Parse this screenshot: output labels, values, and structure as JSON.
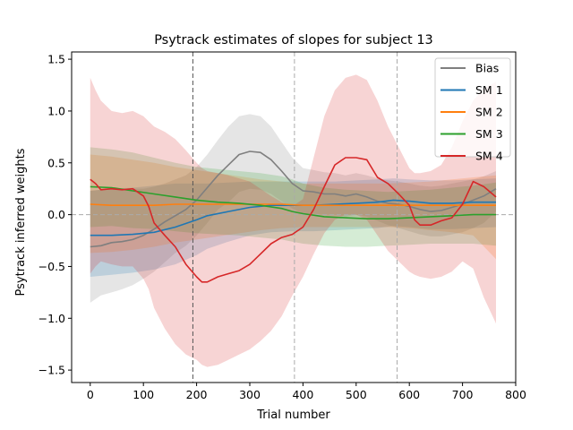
{
  "chart_data": {
    "type": "line",
    "title": "Psytrack estimates of slopes for subject 13",
    "xlabel": "Trial number",
    "ylabel": "Psytrack inferred weights",
    "xlim": [
      -35,
      800
    ],
    "ylim": [
      -1.62,
      1.57
    ],
    "xticks": [
      0,
      100,
      200,
      300,
      400,
      500,
      600,
      700,
      800
    ],
    "yticks": [
      -1.5,
      -1.0,
      -0.5,
      0.0,
      0.5,
      1.0,
      1.5
    ],
    "ytick_labels": [
      "−1.5",
      "−1.0",
      "−0.5",
      "0.0",
      "0.5",
      "1.0",
      "1.5"
    ],
    "zero_line": 0,
    "session_boundaries": [
      193,
      384,
      577
    ],
    "legend_position": "top-right",
    "grid": false,
    "series": [
      {
        "name": "Bias",
        "color": "#7f7f7f",
        "x": [
          0,
          20,
          40,
          60,
          80,
          100,
          120,
          140,
          160,
          180,
          200,
          220,
          240,
          260,
          280,
          300,
          320,
          340,
          360,
          380,
          400,
          420,
          440,
          460,
          480,
          500,
          520,
          540,
          560,
          580,
          600,
          620,
          640,
          660,
          680,
          700,
          720,
          740,
          763
        ],
        "y": [
          -0.31,
          -0.3,
          -0.27,
          -0.26,
          -0.24,
          -0.2,
          -0.14,
          -0.07,
          -0.01,
          0.05,
          0.14,
          0.26,
          0.38,
          0.48,
          0.58,
          0.61,
          0.6,
          0.53,
          0.42,
          0.3,
          0.23,
          0.22,
          0.2,
          0.2,
          0.18,
          0.2,
          0.17,
          0.13,
          0.11,
          0.1,
          0.08,
          0.05,
          0.03,
          0.04,
          0.07,
          0.1,
          0.14,
          0.18,
          0.25
        ],
        "upper": [
          0.23,
          0.24,
          0.24,
          0.25,
          0.25,
          0.25,
          0.27,
          0.3,
          0.34,
          0.38,
          0.46,
          0.58,
          0.72,
          0.85,
          0.95,
          0.97,
          0.95,
          0.85,
          0.7,
          0.55,
          0.45,
          0.43,
          0.41,
          0.4,
          0.38,
          0.4,
          0.38,
          0.35,
          0.33,
          0.32,
          0.3,
          0.28,
          0.27,
          0.28,
          0.3,
          0.32,
          0.34,
          0.37,
          0.42
        ],
        "lower": [
          -0.85,
          -0.78,
          -0.75,
          -0.72,
          -0.68,
          -0.62,
          -0.55,
          -0.46,
          -0.37,
          -0.3,
          -0.2,
          -0.08,
          0.05,
          0.12,
          0.22,
          0.25,
          0.24,
          0.2,
          0.13,
          0.06,
          0.01,
          0.01,
          0.0,
          0.0,
          -0.02,
          0.0,
          -0.02,
          -0.06,
          -0.1,
          -0.13,
          -0.16,
          -0.19,
          -0.21,
          -0.21,
          -0.19,
          -0.17,
          -0.13,
          -0.08,
          0.03
        ]
      },
      {
        "name": "SM 1",
        "color": "#1f77b4",
        "x": [
          0,
          40,
          80,
          120,
          160,
          200,
          220,
          260,
          300,
          340,
          380,
          420,
          460,
          500,
          540,
          570,
          600,
          640,
          680,
          720,
          763
        ],
        "y": [
          -0.2,
          -0.2,
          -0.19,
          -0.17,
          -0.12,
          -0.05,
          -0.01,
          0.03,
          0.07,
          0.09,
          0.09,
          0.09,
          0.1,
          0.11,
          0.12,
          0.14,
          0.13,
          0.11,
          0.11,
          0.12,
          0.12
        ],
        "upper": [
          0.23,
          0.25,
          0.26,
          0.28,
          0.3,
          0.3,
          0.3,
          0.31,
          0.32,
          0.32,
          0.32,
          0.32,
          0.32,
          0.33,
          0.34,
          0.35,
          0.34,
          0.33,
          0.33,
          0.34,
          0.35
        ],
        "lower": [
          -0.6,
          -0.58,
          -0.56,
          -0.53,
          -0.48,
          -0.39,
          -0.33,
          -0.26,
          -0.2,
          -0.17,
          -0.16,
          -0.16,
          -0.15,
          -0.14,
          -0.13,
          -0.11,
          -0.12,
          -0.14,
          -0.14,
          -0.13,
          -0.12
        ]
      },
      {
        "name": "SM 2",
        "color": "#ff7f0e",
        "x": [
          0,
          40,
          80,
          120,
          160,
          200,
          240,
          280,
          320,
          360,
          400,
          440,
          480,
          520,
          560,
          600,
          640,
          680,
          720,
          763
        ],
        "y": [
          0.1,
          0.09,
          0.09,
          0.09,
          0.1,
          0.1,
          0.1,
          0.1,
          0.1,
          0.1,
          0.09,
          0.09,
          0.09,
          0.09,
          0.09,
          0.09,
          0.09,
          0.09,
          0.09,
          0.09
        ],
        "upper": [
          0.58,
          0.56,
          0.53,
          0.5,
          0.46,
          0.43,
          0.4,
          0.37,
          0.34,
          0.32,
          0.3,
          0.3,
          0.3,
          0.3,
          0.3,
          0.31,
          0.32,
          0.34,
          0.36,
          0.38
        ],
        "lower": [
          -0.37,
          -0.36,
          -0.34,
          -0.31,
          -0.27,
          -0.24,
          -0.21,
          -0.18,
          -0.15,
          -0.13,
          -0.12,
          -0.12,
          -0.12,
          -0.12,
          -0.12,
          -0.13,
          -0.15,
          -0.17,
          -0.2,
          -0.43
        ]
      },
      {
        "name": "SM 3",
        "color": "#2ca02c",
        "x": [
          0,
          40,
          80,
          120,
          160,
          200,
          240,
          280,
          320,
          360,
          380,
          400,
          440,
          480,
          520,
          560,
          600,
          640,
          680,
          720,
          763
        ],
        "y": [
          0.27,
          0.26,
          0.23,
          0.2,
          0.17,
          0.14,
          0.12,
          0.11,
          0.09,
          0.06,
          0.03,
          0.01,
          -0.02,
          -0.03,
          -0.04,
          -0.04,
          -0.03,
          -0.02,
          -0.01,
          0.0,
          0.0
        ],
        "upper": [
          0.65,
          0.63,
          0.6,
          0.55,
          0.5,
          0.46,
          0.44,
          0.42,
          0.4,
          0.37,
          0.34,
          0.3,
          0.26,
          0.24,
          0.23,
          0.22,
          0.23,
          0.24,
          0.26,
          0.28,
          0.31
        ],
        "lower": [
          -0.12,
          -0.11,
          -0.13,
          -0.14,
          -0.16,
          -0.18,
          -0.19,
          -0.2,
          -0.22,
          -0.24,
          -0.26,
          -0.28,
          -0.3,
          -0.31,
          -0.31,
          -0.3,
          -0.29,
          -0.28,
          -0.28,
          -0.28,
          -0.3
        ]
      },
      {
        "name": "SM 4",
        "color": "#d62728",
        "x": [
          0,
          10,
          20,
          40,
          60,
          80,
          100,
          110,
          120,
          140,
          160,
          180,
          200,
          210,
          220,
          240,
          260,
          280,
          300,
          320,
          340,
          360,
          380,
          400,
          420,
          440,
          460,
          480,
          500,
          520,
          540,
          560,
          580,
          600,
          610,
          620,
          640,
          660,
          680,
          700,
          720,
          740,
          763
        ],
        "y": [
          0.34,
          0.3,
          0.24,
          0.25,
          0.24,
          0.25,
          0.18,
          0.08,
          -0.08,
          -0.2,
          -0.31,
          -0.48,
          -0.6,
          -0.65,
          -0.65,
          -0.6,
          -0.57,
          -0.54,
          -0.48,
          -0.38,
          -0.28,
          -0.22,
          -0.19,
          -0.12,
          0.05,
          0.27,
          0.48,
          0.55,
          0.55,
          0.53,
          0.36,
          0.3,
          0.2,
          0.09,
          -0.05,
          -0.1,
          -0.1,
          -0.06,
          -0.03,
          0.1,
          0.32,
          0.27,
          0.17
        ],
        "upper": [
          1.32,
          1.2,
          1.1,
          1.0,
          0.98,
          1.0,
          0.95,
          0.9,
          0.85,
          0.8,
          0.73,
          0.62,
          0.5,
          0.45,
          0.42,
          0.4,
          0.38,
          0.35,
          0.32,
          0.25,
          0.18,
          0.12,
          0.08,
          0.15,
          0.55,
          0.95,
          1.2,
          1.32,
          1.35,
          1.3,
          1.1,
          0.85,
          0.65,
          0.45,
          0.4,
          0.4,
          0.42,
          0.48,
          0.65,
          0.9,
          1.1,
          1.22,
          1.28
        ],
        "lower": [
          -0.57,
          -0.5,
          -0.45,
          -0.48,
          -0.5,
          -0.5,
          -0.62,
          -0.72,
          -0.9,
          -1.1,
          -1.25,
          -1.35,
          -1.4,
          -1.45,
          -1.47,
          -1.45,
          -1.4,
          -1.35,
          -1.3,
          -1.22,
          -1.12,
          -0.98,
          -0.78,
          -0.6,
          -0.38,
          -0.18,
          -0.05,
          0.0,
          0.0,
          -0.05,
          -0.2,
          -0.35,
          -0.45,
          -0.55,
          -0.58,
          -0.6,
          -0.62,
          -0.6,
          -0.55,
          -0.45,
          -0.52,
          -0.8,
          -1.05
        ]
      }
    ]
  }
}
